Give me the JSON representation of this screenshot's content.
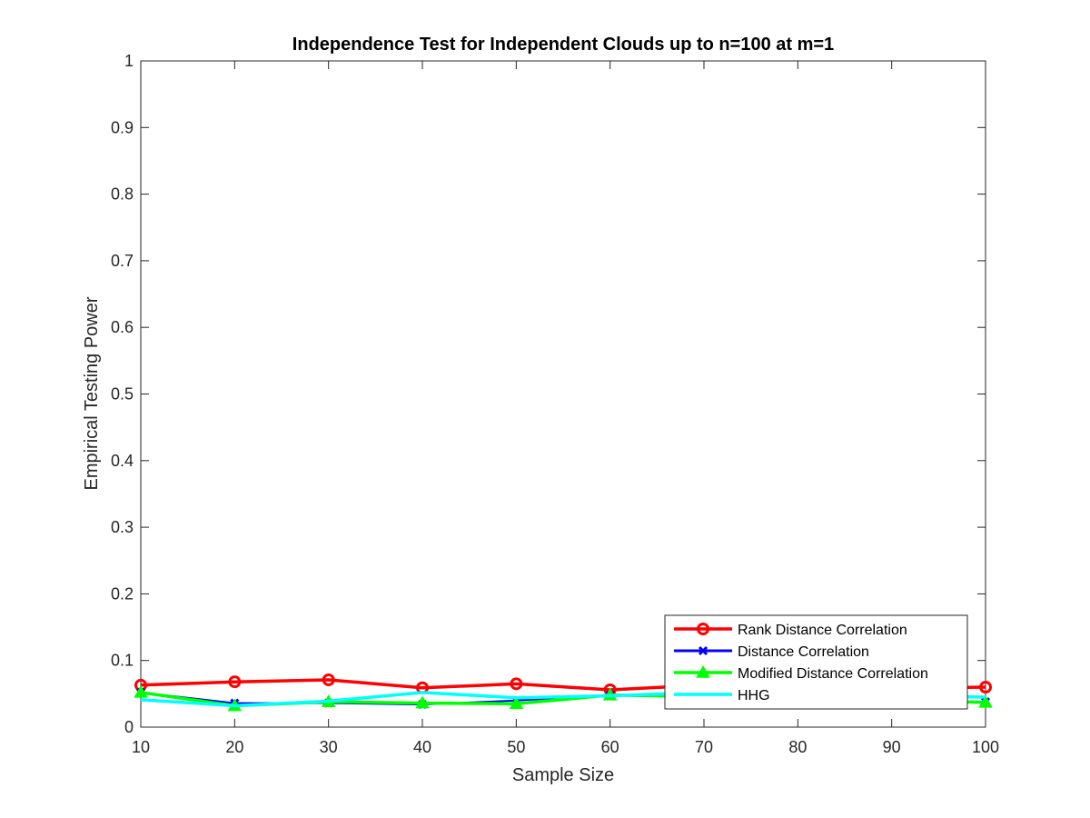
{
  "chart_data": {
    "type": "line",
    "title": "Independence Test for Independent Clouds up to n=100 at m=1",
    "xlabel": "Sample Size",
    "ylabel": "Empirical Testing Power",
    "x": [
      10,
      20,
      30,
      40,
      50,
      60,
      70,
      80,
      90,
      100
    ],
    "xlim": [
      10,
      100
    ],
    "ylim": [
      0,
      1
    ],
    "xticks": [
      "10",
      "20",
      "30",
      "40",
      "50",
      "60",
      "70",
      "80",
      "90",
      "100"
    ],
    "yticks": [
      "0",
      "0.1",
      "0.2",
      "0.3",
      "0.4",
      "0.5",
      "0.6",
      "0.7",
      "0.8",
      "0.9",
      "1"
    ],
    "grid": false,
    "legend_position": "bottom-right",
    "series": [
      {
        "name": "Rank Distance Correlation",
        "color": "#ff0000",
        "marker": "circle",
        "values": [
          0.063,
          0.068,
          0.071,
          0.059,
          0.065,
          0.056,
          0.063,
          0.06,
          0.058,
          0.06
        ]
      },
      {
        "name": "Distance Correlation",
        "color": "#0000ff",
        "marker": "x",
        "values": [
          0.052,
          0.036,
          0.036,
          0.034,
          0.04,
          0.048,
          0.045,
          0.042,
          0.04,
          0.038
        ]
      },
      {
        "name": "Modified Distance Correlation",
        "color": "#00ff00",
        "marker": "triangle",
        "values": [
          0.052,
          0.032,
          0.038,
          0.036,
          0.035,
          0.048,
          0.046,
          0.043,
          0.041,
          0.037
        ]
      },
      {
        "name": "HHG",
        "color": "#00ffff",
        "marker": "none",
        "values": [
          0.041,
          0.032,
          0.039,
          0.052,
          0.044,
          0.047,
          0.052,
          0.049,
          0.047,
          0.045
        ]
      }
    ]
  }
}
